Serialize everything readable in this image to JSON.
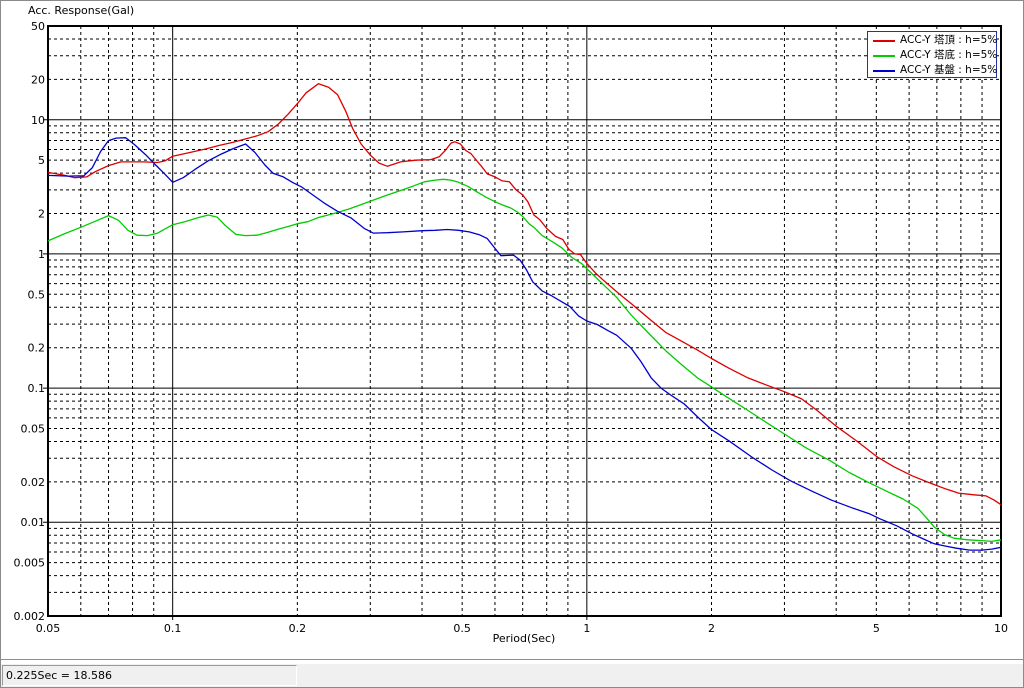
{
  "titles": {
    "y_axis": "Acc. Response(Gal)",
    "x_axis": "Period(Sec)"
  },
  "status_bar": {
    "text": "0.225Sec = 18.586"
  },
  "chart_data": {
    "type": "line",
    "scale": {
      "x": "log",
      "y": "log"
    },
    "x_range": [
      0.05,
      10
    ],
    "y_range": [
      0.002,
      50
    ],
    "grid": {
      "solid_x_values": [
        0.1,
        1
      ],
      "solid_y_values": [
        10,
        1,
        0.1,
        0.01
      ],
      "dashed": "all intermediate log mantissas 2-9 per decade"
    },
    "x_ticks": [
      {
        "label": "0.05",
        "value": 0.05
      },
      {
        "label": "0.1",
        "value": 0.1
      },
      {
        "label": "0.2",
        "value": 0.2
      },
      {
        "label": "0.5",
        "value": 0.5
      },
      {
        "label": "1",
        "value": 1
      },
      {
        "label": "2",
        "value": 2
      },
      {
        "label": "5",
        "value": 5
      },
      {
        "label": "10",
        "value": 10
      }
    ],
    "y_ticks": [
      {
        "label": "50",
        "value": 50
      },
      {
        "label": "20",
        "value": 20
      },
      {
        "label": "10",
        "value": 10
      },
      {
        "label": "5",
        "value": 5
      },
      {
        "label": "2",
        "value": 2
      },
      {
        "label": "1",
        "value": 1
      },
      {
        "label": "0.5",
        "value": 0.5
      },
      {
        "label": "0.2",
        "value": 0.2
      },
      {
        "label": "0.1",
        "value": 0.1
      },
      {
        "label": "0.05",
        "value": 0.05
      },
      {
        "label": "0.02",
        "value": 0.02
      },
      {
        "label": "0.01",
        "value": 0.01
      },
      {
        "label": "0.005",
        "value": 0.005
      },
      {
        "label": "0.002",
        "value": 0.002
      }
    ],
    "legend_border_color": "#2233aa",
    "series": [
      {
        "name": "ACC-Y 塔頂 : h=5%",
        "color": "#dd0000",
        "peak_annotation": "0.225Sec = 18.586",
        "points": [
          [
            0.05,
            4.05
          ],
          [
            0.055,
            3.85
          ],
          [
            0.058,
            3.7
          ],
          [
            0.062,
            3.75
          ],
          [
            0.065,
            4.1
          ],
          [
            0.07,
            4.55
          ],
          [
            0.075,
            4.85
          ],
          [
            0.085,
            4.85
          ],
          [
            0.092,
            4.8
          ],
          [
            0.096,
            4.95
          ],
          [
            0.1,
            5.35
          ],
          [
            0.11,
            5.7
          ],
          [
            0.12,
            6.05
          ],
          [
            0.13,
            6.45
          ],
          [
            0.14,
            6.8
          ],
          [
            0.15,
            7.2
          ],
          [
            0.16,
            7.6
          ],
          [
            0.17,
            8.15
          ],
          [
            0.18,
            9.3
          ],
          [
            0.19,
            11.0
          ],
          [
            0.2,
            13.2
          ],
          [
            0.21,
            15.9
          ],
          [
            0.225,
            18.586
          ],
          [
            0.238,
            17.5
          ],
          [
            0.25,
            15.4
          ],
          [
            0.262,
            11.5
          ],
          [
            0.272,
            8.6
          ],
          [
            0.285,
            6.6
          ],
          [
            0.3,
            5.45
          ],
          [
            0.315,
            4.75
          ],
          [
            0.33,
            4.5
          ],
          [
            0.355,
            4.85
          ],
          [
            0.385,
            5.0
          ],
          [
            0.42,
            5.05
          ],
          [
            0.44,
            5.3
          ],
          [
            0.455,
            5.9
          ],
          [
            0.47,
            6.7
          ],
          [
            0.48,
            6.85
          ],
          [
            0.495,
            6.6
          ],
          [
            0.51,
            5.9
          ],
          [
            0.525,
            5.6
          ],
          [
            0.545,
            4.85
          ],
          [
            0.56,
            4.4
          ],
          [
            0.575,
            3.95
          ],
          [
            0.6,
            3.75
          ],
          [
            0.625,
            3.5
          ],
          [
            0.65,
            3.45
          ],
          [
            0.675,
            3.0
          ],
          [
            0.7,
            2.75
          ],
          [
            0.72,
            2.45
          ],
          [
            0.745,
            1.95
          ],
          [
            0.77,
            1.8
          ],
          [
            0.8,
            1.55
          ],
          [
            0.84,
            1.35
          ],
          [
            0.875,
            1.28
          ],
          [
            0.905,
            1.08
          ],
          [
            0.935,
            1.0
          ],
          [
            0.965,
            0.99
          ],
          [
            1.0,
            0.85
          ],
          [
            1.05,
            0.72
          ],
          [
            1.1,
            0.63
          ],
          [
            1.2,
            0.5
          ],
          [
            1.3,
            0.41
          ],
          [
            1.42,
            0.325
          ],
          [
            1.55,
            0.26
          ],
          [
            1.7,
            0.222
          ],
          [
            1.85,
            0.192
          ],
          [
            2.0,
            0.166
          ],
          [
            2.2,
            0.141
          ],
          [
            2.45,
            0.119
          ],
          [
            2.7,
            0.106
          ],
          [
            3.0,
            0.094
          ],
          [
            3.3,
            0.083
          ],
          [
            3.6,
            0.068
          ],
          [
            4.0,
            0.052
          ],
          [
            4.5,
            0.04
          ],
          [
            5.0,
            0.031
          ],
          [
            5.5,
            0.026
          ],
          [
            6.1,
            0.0222
          ],
          [
            6.8,
            0.0194
          ],
          [
            7.4,
            0.0176
          ],
          [
            7.9,
            0.0165
          ],
          [
            8.6,
            0.016
          ],
          [
            9.2,
            0.0157
          ],
          [
            9.6,
            0.0147
          ],
          [
            10,
            0.0135
          ]
        ]
      },
      {
        "name": "ACC-Y 塔底 : h=5%",
        "color": "#00cc00",
        "points": [
          [
            0.05,
            1.25
          ],
          [
            0.055,
            1.42
          ],
          [
            0.06,
            1.58
          ],
          [
            0.065,
            1.75
          ],
          [
            0.07,
            1.93
          ],
          [
            0.074,
            1.78
          ],
          [
            0.078,
            1.5
          ],
          [
            0.082,
            1.38
          ],
          [
            0.087,
            1.37
          ],
          [
            0.092,
            1.43
          ],
          [
            0.096,
            1.54
          ],
          [
            0.1,
            1.65
          ],
          [
            0.107,
            1.74
          ],
          [
            0.115,
            1.86
          ],
          [
            0.122,
            1.95
          ],
          [
            0.128,
            1.88
          ],
          [
            0.134,
            1.63
          ],
          [
            0.142,
            1.4
          ],
          [
            0.15,
            1.37
          ],
          [
            0.16,
            1.38
          ],
          [
            0.17,
            1.45
          ],
          [
            0.18,
            1.53
          ],
          [
            0.19,
            1.6
          ],
          [
            0.2,
            1.68
          ],
          [
            0.212,
            1.74
          ],
          [
            0.225,
            1.87
          ],
          [
            0.245,
            2.0
          ],
          [
            0.266,
            2.16
          ],
          [
            0.285,
            2.33
          ],
          [
            0.305,
            2.52
          ],
          [
            0.33,
            2.75
          ],
          [
            0.355,
            2.97
          ],
          [
            0.38,
            3.2
          ],
          [
            0.405,
            3.45
          ],
          [
            0.43,
            3.55
          ],
          [
            0.45,
            3.6
          ],
          [
            0.47,
            3.55
          ],
          [
            0.49,
            3.42
          ],
          [
            0.515,
            3.2
          ],
          [
            0.545,
            2.88
          ],
          [
            0.57,
            2.65
          ],
          [
            0.6,
            2.45
          ],
          [
            0.625,
            2.32
          ],
          [
            0.655,
            2.2
          ],
          [
            0.68,
            2.05
          ],
          [
            0.7,
            1.9
          ],
          [
            0.725,
            1.68
          ],
          [
            0.75,
            1.55
          ],
          [
            0.78,
            1.37
          ],
          [
            0.82,
            1.25
          ],
          [
            0.87,
            1.11
          ],
          [
            0.92,
            0.94
          ],
          [
            0.97,
            0.85
          ],
          [
            1.03,
            0.71
          ],
          [
            1.1,
            0.585
          ],
          [
            1.18,
            0.475
          ],
          [
            1.28,
            0.35
          ],
          [
            1.4,
            0.262
          ],
          [
            1.55,
            0.19
          ],
          [
            1.7,
            0.148
          ],
          [
            1.85,
            0.119
          ],
          [
            2.0,
            0.102
          ],
          [
            2.2,
            0.084
          ],
          [
            2.45,
            0.068
          ],
          [
            2.7,
            0.056
          ],
          [
            3.0,
            0.0455
          ],
          [
            3.4,
            0.0355
          ],
          [
            3.85,
            0.029
          ],
          [
            4.3,
            0.0235
          ],
          [
            4.8,
            0.0197
          ],
          [
            5.3,
            0.017
          ],
          [
            5.8,
            0.0149
          ],
          [
            6.3,
            0.0127
          ],
          [
            6.6,
            0.0108
          ],
          [
            6.9,
            0.0092
          ],
          [
            7.3,
            0.0081
          ],
          [
            7.7,
            0.0076
          ],
          [
            8.3,
            0.0074
          ],
          [
            9.0,
            0.0073
          ],
          [
            9.5,
            0.0072
          ],
          [
            10,
            0.0074
          ]
        ]
      },
      {
        "name": "ACC-Y 基盤 : h=5%",
        "color": "#0000cc",
        "points": [
          [
            0.05,
            3.85
          ],
          [
            0.056,
            3.8
          ],
          [
            0.061,
            3.82
          ],
          [
            0.064,
            4.4
          ],
          [
            0.067,
            5.8
          ],
          [
            0.07,
            7.0
          ],
          [
            0.073,
            7.3
          ],
          [
            0.077,
            7.35
          ],
          [
            0.081,
            6.5
          ],
          [
            0.086,
            5.5
          ],
          [
            0.091,
            4.6
          ],
          [
            0.096,
            3.9
          ],
          [
            0.1,
            3.42
          ],
          [
            0.106,
            3.7
          ],
          [
            0.113,
            4.25
          ],
          [
            0.122,
            4.95
          ],
          [
            0.131,
            5.55
          ],
          [
            0.14,
            6.1
          ],
          [
            0.15,
            6.6
          ],
          [
            0.158,
            5.7
          ],
          [
            0.167,
            4.6
          ],
          [
            0.175,
            3.98
          ],
          [
            0.185,
            3.75
          ],
          [
            0.195,
            3.4
          ],
          [
            0.205,
            3.15
          ],
          [
            0.218,
            2.75
          ],
          [
            0.232,
            2.4
          ],
          [
            0.25,
            2.08
          ],
          [
            0.27,
            1.85
          ],
          [
            0.29,
            1.55
          ],
          [
            0.305,
            1.43
          ],
          [
            0.33,
            1.44
          ],
          [
            0.36,
            1.46
          ],
          [
            0.4,
            1.49
          ],
          [
            0.43,
            1.5
          ],
          [
            0.46,
            1.52
          ],
          [
            0.49,
            1.5
          ],
          [
            0.52,
            1.46
          ],
          [
            0.55,
            1.39
          ],
          [
            0.575,
            1.3
          ],
          [
            0.6,
            1.1
          ],
          [
            0.62,
            0.97
          ],
          [
            0.645,
            0.975
          ],
          [
            0.665,
            0.98
          ],
          [
            0.69,
            0.9
          ],
          [
            0.715,
            0.76
          ],
          [
            0.74,
            0.62
          ],
          [
            0.78,
            0.53
          ],
          [
            0.82,
            0.49
          ],
          [
            0.87,
            0.44
          ],
          [
            0.91,
            0.405
          ],
          [
            0.955,
            0.345
          ],
          [
            1.0,
            0.316
          ],
          [
            1.06,
            0.298
          ],
          [
            1.12,
            0.27
          ],
          [
            1.18,
            0.248
          ],
          [
            1.28,
            0.198
          ],
          [
            1.35,
            0.158
          ],
          [
            1.43,
            0.119
          ],
          [
            1.51,
            0.1
          ],
          [
            1.6,
            0.088
          ],
          [
            1.72,
            0.076
          ],
          [
            1.85,
            0.061
          ],
          [
            2.0,
            0.049
          ],
          [
            2.2,
            0.0405
          ],
          [
            2.5,
            0.0307
          ],
          [
            2.8,
            0.0245
          ],
          [
            3.1,
            0.0204
          ],
          [
            3.5,
            0.017
          ],
          [
            3.9,
            0.0146
          ],
          [
            4.4,
            0.0127
          ],
          [
            4.8,
            0.0116
          ],
          [
            5.1,
            0.0106
          ],
          [
            5.6,
            0.0094
          ],
          [
            6.1,
            0.0082
          ],
          [
            6.5,
            0.0075
          ],
          [
            6.9,
            0.0069
          ],
          [
            7.4,
            0.0066
          ],
          [
            7.8,
            0.0064
          ],
          [
            8.4,
            0.0062
          ],
          [
            9.0,
            0.0062
          ],
          [
            9.5,
            0.0063
          ],
          [
            10,
            0.0065
          ]
        ]
      }
    ]
  }
}
